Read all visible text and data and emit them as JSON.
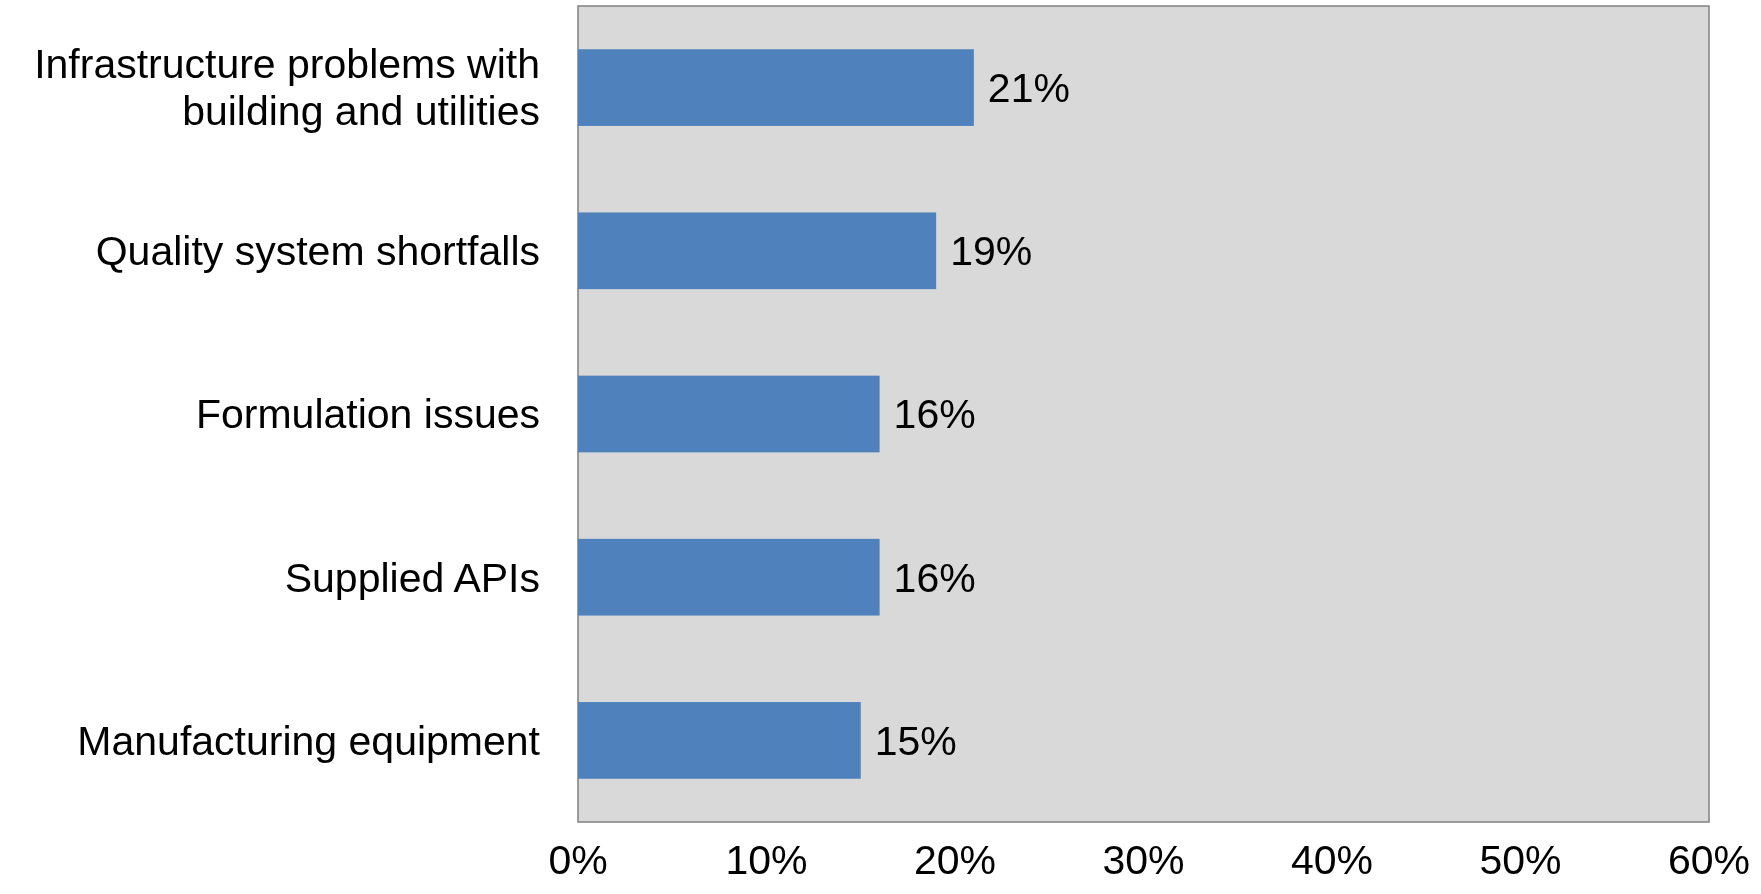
{
  "chart_data": {
    "type": "bar",
    "orientation": "horizontal",
    "categories": [
      "Infrastructure problems with building and utilities",
      "Quality system shortfalls",
      "Formulation issues",
      "Supplied APIs",
      "Manufacturing equipment"
    ],
    "values": [
      21,
      19,
      16,
      16,
      15
    ],
    "value_labels": [
      "21%",
      "19%",
      "16%",
      "16%",
      "15%"
    ],
    "color": "#4f81bd",
    "xlim": [
      0,
      60
    ],
    "xticks": [
      {
        "value": 0,
        "label": "0%"
      },
      {
        "value": 10,
        "label": "10%"
      },
      {
        "value": 20,
        "label": "20%"
      },
      {
        "value": 30,
        "label": "30%"
      },
      {
        "value": 40,
        "label": "40%"
      },
      {
        "value": 50,
        "label": "50%"
      },
      {
        "value": 60,
        "label": "60%"
      }
    ],
    "grid": false
  }
}
